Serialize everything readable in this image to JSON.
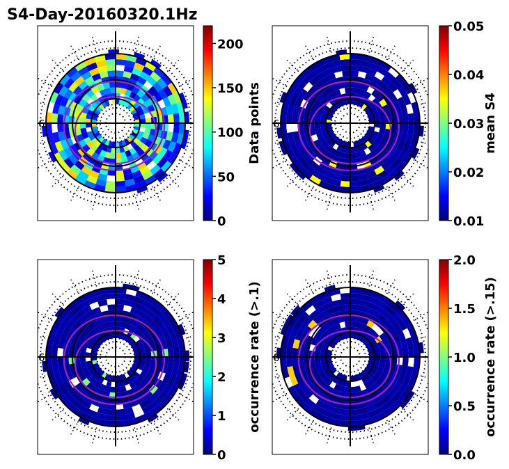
{
  "title": "S4-Day-20160320.1Hz",
  "palette": {
    "ring_color": "#a020c0",
    "circle_color": "#000000",
    "frame_color": "#000000",
    "jet": [
      "#00007f",
      "#0000ff",
      "#007fff",
      "#00ffff",
      "#7fff7f",
      "#ffff00",
      "#ff7f00",
      "#ff0000",
      "#7f0000"
    ]
  },
  "panels": [
    {
      "id": "data-points",
      "polar_label": "6",
      "colorbar": {
        "label": "Data points",
        "min": 0,
        "max": 220,
        "ticks": [
          "0",
          "50",
          "100",
          "150",
          "200"
        ],
        "tick_values": [
          0,
          50,
          100,
          150,
          200
        ]
      }
    },
    {
      "id": "mean-s4",
      "polar_label": "6",
      "colorbar": {
        "label": "mean S4",
        "min": 0.01,
        "max": 0.05,
        "ticks": [
          "0.01",
          "0.02",
          "0.03",
          "0.04",
          "0.05"
        ],
        "tick_values": [
          0.01,
          0.02,
          0.03,
          0.04,
          0.05
        ]
      }
    },
    {
      "id": "occurrence-rate-01",
      "polar_label": "6",
      "colorbar": {
        "label": "occurrence rate (>.1)",
        "min": 0,
        "max": 5,
        "ticks": [
          "0",
          "1",
          "2",
          "3",
          "4",
          "5"
        ],
        "tick_values": [
          0,
          1,
          2,
          3,
          4,
          5
        ]
      }
    },
    {
      "id": "occurrence-rate-015",
      "polar_label": "6",
      "colorbar": {
        "label": "occurrence rate (>.15)",
        "min": 0,
        "max": 2,
        "ticks": [
          "0.0",
          "0.5",
          "1.0",
          "1.5",
          "2.0"
        ],
        "tick_values": [
          0,
          0.5,
          1.0,
          1.5,
          2.0
        ]
      }
    }
  ],
  "chart_data": [
    {
      "type": "heatmap",
      "title": "S4-Day-20160320.1Hz",
      "projection": "polar",
      "cbar_label": "Data points",
      "clim": [
        0,
        220
      ],
      "value_level": "mixed 0-220, mostly 40-140",
      "legend": "colorbar-right"
    },
    {
      "type": "heatmap",
      "title": "S4-Day-20160320.1Hz",
      "projection": "polar",
      "cbar_label": "mean S4",
      "clim": [
        0.01,
        0.05
      ],
      "value_level": "mostly ~0.01",
      "legend": "colorbar-right"
    },
    {
      "type": "heatmap",
      "title": "S4-Day-20160320.1Hz",
      "projection": "polar",
      "cbar_label": "occurrence rate (>.1)",
      "clim": [
        0,
        5
      ],
      "value_level": "mostly 0",
      "legend": "colorbar-right"
    },
    {
      "type": "heatmap",
      "title": "S4-Day-20160320.1Hz",
      "projection": "polar",
      "cbar_label": "occurrence rate (>.15)",
      "clim": [
        0,
        2
      ],
      "value_level": "mostly 0",
      "legend": "colorbar-right"
    }
  ]
}
